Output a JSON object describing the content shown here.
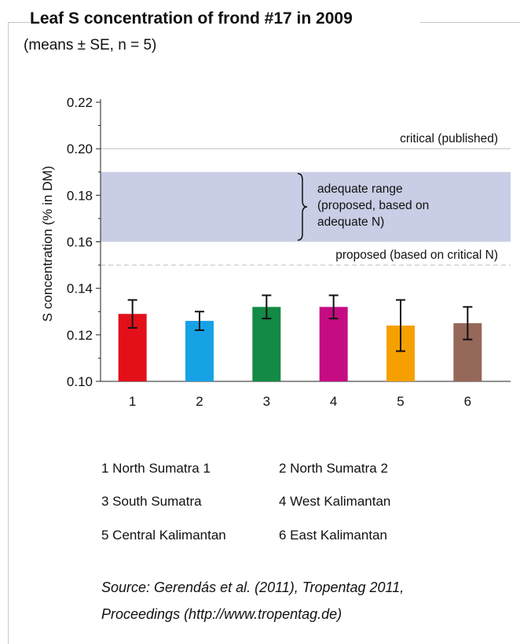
{
  "header": {
    "title": "Leaf S concentration of frond #17 in 2009",
    "subtitle": "(means ± SE, n = 5)"
  },
  "chart_data": {
    "type": "bar",
    "categories": [
      "1",
      "2",
      "3",
      "4",
      "5",
      "6"
    ],
    "values": [
      0.129,
      0.126,
      0.132,
      0.132,
      0.124,
      0.125
    ],
    "errors": [
      0.006,
      0.004,
      0.005,
      0.005,
      0.011,
      0.007
    ],
    "colors": [
      "#e3101a",
      "#17a2e5",
      "#138a45",
      "#c60c83",
      "#f6a000",
      "#96685a"
    ],
    "ylabel": "S concentration (% in DM)",
    "xlabel": "",
    "ylim": [
      0.1,
      0.22
    ],
    "yticks": [
      "0.10",
      "0.12",
      "0.14",
      "0.16",
      "0.18",
      "0.20",
      "0.22"
    ],
    "grid": false,
    "reference_lines": [
      {
        "value": 0.2,
        "label": "critical (published)",
        "style": "solid",
        "color": "#d2d2d2"
      },
      {
        "value": 0.15,
        "label": "proposed (based on critical N)",
        "style": "dashed",
        "color": "#d2d2d2"
      }
    ],
    "band": {
      "from": 0.16,
      "to": 0.19,
      "color": "#c9cde5",
      "label_lines": [
        "adequate range",
        "(proposed, based on",
        "adequate N)"
      ]
    }
  },
  "legend": [
    {
      "num": "1",
      "text": "1 North Sumatra 1"
    },
    {
      "num": "2",
      "text": "2 North Sumatra 2"
    },
    {
      "num": "3",
      "text": "3 South Sumatra"
    },
    {
      "num": "4",
      "text": "4 West Kalimantan"
    },
    {
      "num": "5",
      "text": "5 Central Kalimantan"
    },
    {
      "num": "6",
      "text": "6 East Kalimantan"
    }
  ],
  "source": {
    "line1": "Source: Gerendás et al. (2011), Tropentag 2011,",
    "line2": "Proceedings (http://www.tropentag.de)"
  }
}
